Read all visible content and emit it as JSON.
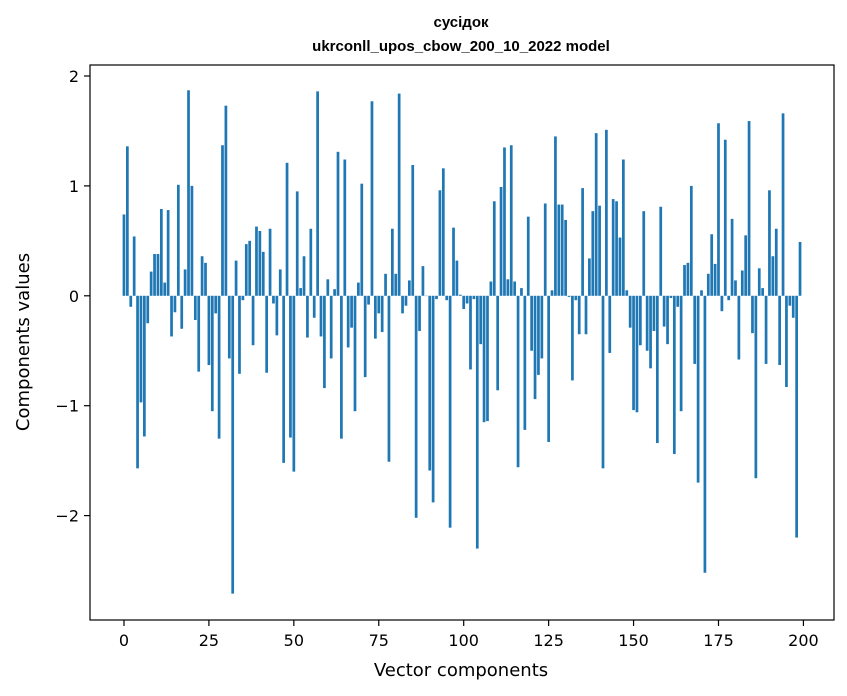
{
  "chart_data": {
    "type": "bar",
    "title": "сусідок",
    "subtitle": "ukrconll_upos_cbow_200_10_2022 model",
    "xlabel": "Vector components",
    "ylabel": "Components values",
    "xlim": [
      -10,
      209
    ],
    "ylim": [
      -2.95,
      2.1
    ],
    "xticks": [
      0,
      25,
      50,
      75,
      100,
      125,
      150,
      175,
      200
    ],
    "yticks": [
      -2,
      -1,
      0,
      1,
      2
    ],
    "ytick_labels": [
      "−2",
      "−1",
      "0",
      "1",
      "2"
    ],
    "bar_color": "#1f77b4",
    "values": [
      0.74,
      1.36,
      -0.1,
      0.54,
      -1.57,
      -0.97,
      -1.28,
      -0.25,
      0.22,
      0.38,
      0.38,
      0.79,
      0.12,
      0.78,
      -0.37,
      -0.15,
      1.01,
      -0.3,
      0.24,
      1.87,
      1.0,
      -0.22,
      -0.69,
      0.36,
      0.3,
      -0.63,
      -1.05,
      -0.16,
      -1.3,
      1.37,
      1.73,
      -0.57,
      -2.71,
      0.32,
      -0.71,
      -0.04,
      0.47,
      0.5,
      -0.45,
      0.63,
      0.59,
      0.4,
      -0.7,
      0.61,
      -0.07,
      -0.36,
      0.24,
      -1.52,
      1.21,
      -1.29,
      -1.6,
      0.95,
      0.07,
      0.36,
      -0.38,
      0.61,
      -0.2,
      1.86,
      -0.37,
      -0.84,
      0.15,
      -0.57,
      0.06,
      1.31,
      -1.3,
      1.24,
      -0.47,
      -0.29,
      -1.05,
      0.12,
      1.02,
      -0.74,
      -0.08,
      1.77,
      -0.39,
      -0.16,
      -0.33,
      0.2,
      -1.51,
      0.61,
      0.2,
      1.84,
      -0.16,
      -0.09,
      0.14,
      1.19,
      -2.02,
      -0.32,
      0.27,
      0.0,
      -1.59,
      -1.88,
      -0.03,
      0.96,
      1.16,
      -0.04,
      -2.11,
      0.62,
      0.32,
      0.01,
      -0.12,
      -0.07,
      -0.67,
      -0.03,
      -2.3,
      -0.44,
      -1.15,
      -1.14,
      0.13,
      0.86,
      -0.86,
      0.99,
      1.35,
      0.15,
      1.37,
      0.13,
      -1.56,
      0.07,
      -1.22,
      0.72,
      -0.5,
      -0.94,
      -0.72,
      -0.57,
      0.84,
      -1.33,
      0.05,
      1.45,
      0.83,
      0.83,
      0.69,
      -0.01,
      -0.77,
      -0.04,
      -0.35,
      0.98,
      -0.35,
      0.34,
      0.77,
      1.48,
      0.82,
      -1.57,
      1.51,
      -0.52,
      0.88,
      0.86,
      0.53,
      1.24,
      0.05,
      -0.29,
      -1.04,
      -1.06,
      -0.45,
      0.77,
      -0.5,
      -0.66,
      -0.32,
      -1.34,
      0.81,
      -0.28,
      -0.44,
      -0.02,
      -1.44,
      -0.1,
      -1.05,
      0.28,
      0.3,
      1.0,
      -0.62,
      -1.7,
      0.05,
      -2.52,
      0.2,
      0.56,
      0.29,
      1.57,
      -0.14,
      1.42,
      -0.04,
      0.7,
      0.14,
      -0.58,
      0.23,
      0.55,
      1.59,
      -0.34,
      -1.66,
      0.25,
      0.07,
      -0.62,
      0.96,
      0.36,
      0.61,
      -0.63,
      1.66,
      -0.83,
      -0.09,
      -0.2,
      -2.2,
      0.49
    ]
  }
}
